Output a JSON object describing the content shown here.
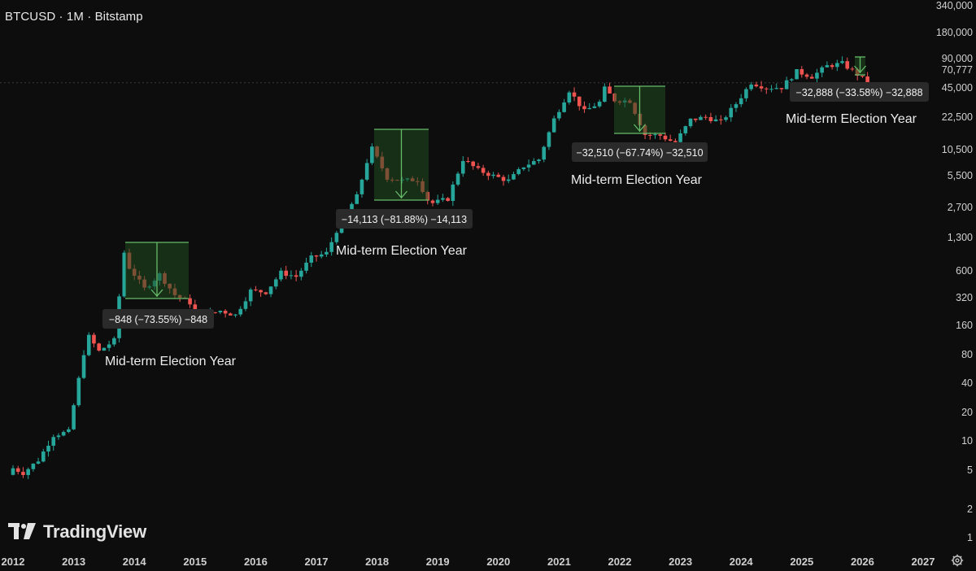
{
  "header": {
    "symbol_title": "BTCUSD · 1M · Bitstamp"
  },
  "branding": {
    "logo_text": "TradingView"
  },
  "colors": {
    "background": "#0d0d0d",
    "up_candle": "#26a69a",
    "down_candle": "#ef5350",
    "measure_fill": "#1f4d1f",
    "measure_stroke": "#66bb6a",
    "label_bg": "#2a2a2a"
  },
  "chart_data": {
    "type": "candlestick",
    "title": "BTCUSD · 1M · Bitstamp",
    "x_scale": "time",
    "y_scale": "log",
    "x_ticks": [
      "2012",
      "2013",
      "2014",
      "2015",
      "2016",
      "2017",
      "2018",
      "2019",
      "2020",
      "2021",
      "2022",
      "2023",
      "2024",
      "2025",
      "2026",
      "2027"
    ],
    "y_ticks": [
      "340,000",
      "180,000",
      "90,000",
      "70,777",
      "45,000",
      "22,500",
      "10,500",
      "5,500",
      "2,700",
      "1,300",
      "600",
      "320",
      "160",
      "80",
      "40",
      "20",
      "10",
      "5",
      "2",
      "1"
    ],
    "current_price": "70,777",
    "ylim": [
      0.75,
      400000
    ],
    "series": [
      {
        "interval": "1M",
        "monthly_closes": [
          [
            "2012-01",
            5.5
          ],
          [
            "2012-03",
            4.9
          ],
          [
            "2012-06",
            6.7
          ],
          [
            "2012-09",
            12.4
          ],
          [
            "2012-12",
            13.5
          ],
          [
            "2013-03",
            93
          ],
          [
            "2013-04",
            139
          ],
          [
            "2013-06",
            97
          ],
          [
            "2013-09",
            127
          ],
          [
            "2013-11",
            1100
          ],
          [
            "2013-12",
            760
          ],
          [
            "2014-03",
            450
          ],
          [
            "2014-06",
            640
          ],
          [
            "2014-09",
            387
          ],
          [
            "2014-12",
            320
          ],
          [
            "2015-01",
            217
          ],
          [
            "2015-06",
            263
          ],
          [
            "2015-09",
            236
          ],
          [
            "2015-12",
            430
          ],
          [
            "2016-03",
            416
          ],
          [
            "2016-06",
            670
          ],
          [
            "2016-09",
            608
          ],
          [
            "2016-12",
            964
          ],
          [
            "2017-03",
            1080
          ],
          [
            "2017-06",
            2480
          ],
          [
            "2017-09",
            4340
          ],
          [
            "2017-11",
            10200
          ],
          [
            "2017-12",
            14100
          ],
          [
            "2018-03",
            6900
          ],
          [
            "2018-06",
            6400
          ],
          [
            "2018-09",
            6600
          ],
          [
            "2018-11",
            4000
          ],
          [
            "2018-12",
            3700
          ],
          [
            "2019-03",
            4100
          ],
          [
            "2019-06",
            10800
          ],
          [
            "2019-09",
            8300
          ],
          [
            "2019-12",
            7200
          ],
          [
            "2020-03",
            6400
          ],
          [
            "2020-06",
            9140
          ],
          [
            "2020-09",
            10800
          ],
          [
            "2020-12",
            29000
          ],
          [
            "2021-03",
            58800
          ],
          [
            "2021-06",
            35000
          ],
          [
            "2021-09",
            43800
          ],
          [
            "2021-10",
            61300
          ],
          [
            "2021-12",
            46300
          ],
          [
            "2022-03",
            45500
          ],
          [
            "2022-06",
            19900
          ],
          [
            "2022-09",
            19400
          ],
          [
            "2022-11",
            17100
          ],
          [
            "2022-12",
            16500
          ],
          [
            "2023-03",
            28500
          ],
          [
            "2023-06",
            30500
          ],
          [
            "2023-09",
            27000
          ],
          [
            "2023-12",
            42300
          ],
          [
            "2024-03",
            71300
          ],
          [
            "2024-06",
            62700
          ],
          [
            "2024-09",
            63300
          ],
          [
            "2024-12",
            93400
          ],
          [
            "2025-03",
            82500
          ],
          [
            "2025-06",
            107000
          ],
          [
            "2025-09",
            114000
          ],
          [
            "2025-12",
            87000
          ],
          [
            "2026-02",
            70777
          ]
        ]
      }
    ],
    "annotations": [
      {
        "label": "Mid-term Election Year",
        "measure": "−848 (−73.55%) −848",
        "from": "2013-11",
        "to": "2015-01"
      },
      {
        "label": "Mid-term Election Year",
        "measure": "−14,113 (−81.88%) −14,113",
        "from": "2017-12",
        "to": "2018-12"
      },
      {
        "label": "Mid-term Election Year",
        "measure": "−32,510 (−67.74%) −32,510",
        "from": "2021-11",
        "to": "2022-11"
      },
      {
        "label": "Mid-term Election Year",
        "measure": "−32,888 (−33.58%) −32,888",
        "from": "2025-10",
        "to": "2026-02"
      }
    ]
  }
}
